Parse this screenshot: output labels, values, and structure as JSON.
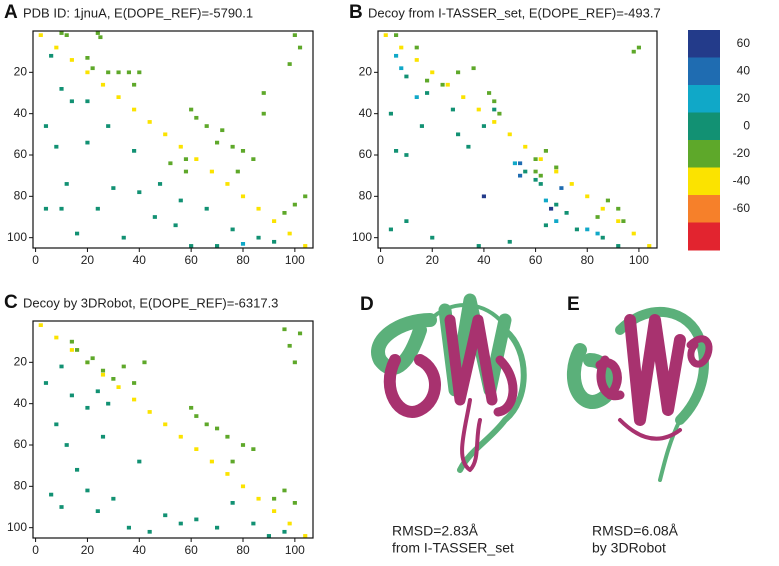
{
  "chart_data": [
    {
      "type": "heatmap",
      "panel_label": "A",
      "title": "PDB ID: 1jnuA, E(DOPE_REF)=-5790.1",
      "xlim": [
        -1,
        107
      ],
      "ylim": [
        0,
        105
      ],
      "xticks": [
        0,
        20,
        40,
        60,
        80,
        100
      ],
      "yticks": [
        20,
        40,
        60,
        80,
        100
      ],
      "x": [
        2,
        8,
        14,
        20,
        26,
        32,
        38,
        44,
        50,
        56,
        62,
        68,
        74,
        80,
        86,
        92,
        98,
        104,
        10,
        12,
        24,
        25,
        20,
        22,
        28,
        32,
        36,
        38,
        40,
        60,
        62,
        66,
        72,
        70,
        76,
        80,
        84,
        78,
        100,
        102,
        98,
        104,
        100,
        96,
        88,
        88,
        58,
        58,
        52,
        6,
        10,
        14,
        20,
        4,
        8,
        20,
        12,
        4,
        10,
        16,
        24,
        30,
        34,
        40,
        46,
        48,
        54,
        60,
        66,
        70,
        76,
        80,
        86,
        92,
        28,
        38,
        56
      ],
      "y": [
        2,
        8,
        14,
        20,
        26,
        32,
        38,
        44,
        50,
        56,
        62,
        68,
        74,
        80,
        86,
        92,
        98,
        104,
        1,
        2,
        1,
        3,
        13,
        18,
        20,
        20,
        20,
        26,
        20,
        38,
        42,
        46,
        48,
        54,
        56,
        58,
        62,
        68,
        2,
        8,
        16,
        80,
        84,
        88,
        30,
        40,
        62,
        68,
        64,
        12,
        28,
        34,
        34,
        46,
        56,
        54,
        74,
        86,
        86,
        98,
        86,
        76,
        100,
        78,
        90,
        74,
        94,
        104,
        86,
        104,
        96,
        103,
        100,
        102,
        46,
        58,
        82
      ],
      "values": [
        -30,
        -30,
        -30,
        -30,
        -30,
        -30,
        -30,
        -30,
        -30,
        -30,
        -30,
        -30,
        -30,
        -30,
        -30,
        -30,
        -30,
        -30,
        -10,
        -10,
        -10,
        -10,
        -10,
        -10,
        -10,
        -10,
        -10,
        -10,
        -10,
        -10,
        -10,
        -10,
        -10,
        -10,
        -10,
        -10,
        -10,
        -10,
        -10,
        -10,
        -10,
        -10,
        -10,
        -10,
        -10,
        -10,
        -10,
        -10,
        -10,
        10,
        10,
        10,
        10,
        10,
        10,
        10,
        10,
        10,
        10,
        10,
        10,
        10,
        10,
        10,
        10,
        10,
        10,
        10,
        10,
        10,
        10,
        25,
        10,
        10,
        10,
        10,
        10
      ]
    },
    {
      "type": "heatmap",
      "panel_label": "B",
      "title": "Decoy from I-TASSER_set, E(DOPE_REF)=-493.7",
      "xlim": [
        -1,
        107
      ],
      "ylim": [
        0,
        105
      ],
      "xticks": [
        0,
        20,
        40,
        60,
        80,
        100
      ],
      "yticks": [
        20,
        40,
        60,
        80,
        100
      ],
      "x": [
        2,
        8,
        14,
        20,
        26,
        32,
        38,
        44,
        50,
        56,
        62,
        68,
        74,
        80,
        86,
        92,
        98,
        104,
        6,
        14,
        18,
        24,
        30,
        42,
        44,
        46,
        36,
        60,
        64,
        68,
        60,
        62,
        84,
        88,
        92,
        98,
        100,
        94,
        6,
        8,
        10,
        14,
        18,
        4,
        6,
        10,
        16,
        28,
        30,
        34,
        40,
        44,
        54,
        56,
        60,
        62,
        64,
        68,
        70,
        72,
        76,
        84,
        4,
        10,
        20,
        38,
        50,
        64,
        80,
        86,
        92,
        52,
        54,
        40,
        66,
        68
      ],
      "y": [
        2,
        8,
        14,
        20,
        26,
        32,
        38,
        44,
        50,
        56,
        62,
        68,
        74,
        80,
        86,
        92,
        98,
        104,
        2,
        8,
        24,
        26,
        20,
        30,
        34,
        40,
        18,
        62,
        58,
        66,
        68,
        70,
        90,
        82,
        86,
        10,
        8,
        92,
        12,
        18,
        22,
        32,
        30,
        40,
        58,
        60,
        46,
        38,
        50,
        56,
        46,
        38,
        64,
        68,
        72,
        74,
        82,
        84,
        76,
        88,
        96,
        98,
        96,
        92,
        100,
        104,
        102,
        94,
        96,
        100,
        104,
        64,
        70,
        80,
        86,
        92
      ],
      "values": [
        -30,
        -30,
        -30,
        -30,
        -30,
        -30,
        -30,
        -30,
        -30,
        -30,
        -30,
        -30,
        -30,
        -30,
        -30,
        -30,
        -30,
        -30,
        -10,
        -10,
        -10,
        -10,
        -10,
        -10,
        -10,
        -10,
        -10,
        -10,
        -10,
        -10,
        -10,
        -10,
        -10,
        -10,
        -10,
        -10,
        -10,
        -10,
        25,
        25,
        10,
        25,
        10,
        10,
        10,
        10,
        10,
        10,
        10,
        10,
        10,
        10,
        45,
        10,
        10,
        10,
        25,
        10,
        45,
        10,
        10,
        25,
        10,
        10,
        10,
        10,
        10,
        10,
        25,
        10,
        10,
        25,
        45,
        65,
        65,
        25
      ]
    },
    {
      "type": "heatmap",
      "panel_label": "C",
      "title": "Decoy by 3DRobot, E(DOPE_REF)=-6317.3",
      "xlim": [
        -1,
        107
      ],
      "ylim": [
        0,
        105
      ],
      "xticks": [
        0,
        20,
        40,
        60,
        80,
        100
      ],
      "yticks": [
        20,
        40,
        60,
        80,
        100
      ],
      "x": [
        2,
        8,
        14,
        20,
        26,
        32,
        38,
        44,
        50,
        56,
        62,
        68,
        74,
        80,
        86,
        92,
        98,
        104,
        14,
        16,
        20,
        22,
        26,
        30,
        34,
        38,
        42,
        60,
        62,
        66,
        70,
        74,
        80,
        84,
        76,
        96,
        98,
        100,
        102,
        92,
        96,
        100,
        4,
        10,
        14,
        20,
        24,
        28,
        8,
        12,
        6,
        10,
        20,
        24,
        30,
        36,
        44,
        50,
        56,
        62,
        70,
        76,
        84,
        90,
        96,
        16,
        26,
        40
      ],
      "y": [
        2,
        8,
        14,
        20,
        26,
        32,
        38,
        44,
        50,
        56,
        62,
        68,
        74,
        80,
        86,
        92,
        98,
        104,
        10,
        14,
        20,
        18,
        24,
        28,
        22,
        30,
        20,
        42,
        46,
        50,
        52,
        56,
        60,
        62,
        68,
        4,
        12,
        20,
        6,
        86,
        82,
        88,
        30,
        22,
        36,
        42,
        34,
        40,
        50,
        60,
        84,
        90,
        82,
        92,
        86,
        100,
        102,
        94,
        98,
        96,
        100,
        88,
        98,
        104,
        102,
        72,
        56,
        68
      ],
      "values": [
        -30,
        -30,
        -30,
        -30,
        -30,
        -30,
        -30,
        -30,
        -30,
        -30,
        -30,
        -30,
        -30,
        -30,
        -30,
        -30,
        -30,
        -30,
        -10,
        -10,
        -10,
        -10,
        -10,
        -10,
        -10,
        -10,
        -10,
        -10,
        -10,
        -10,
        -10,
        -10,
        -10,
        -10,
        -10,
        -10,
        -10,
        -10,
        -10,
        -10,
        -10,
        -10,
        10,
        10,
        10,
        10,
        10,
        10,
        10,
        10,
        10,
        10,
        10,
        10,
        10,
        10,
        10,
        10,
        10,
        10,
        10,
        10,
        10,
        10,
        10,
        10,
        10,
        10
      ]
    },
    {
      "type": "colorbar",
      "ylim": [
        -80,
        80
      ],
      "colors": [
        "#233b8a",
        "#1f6cb1",
        "#10a8c8",
        "#129173",
        "#5ea82a",
        "#fbe300",
        "#f6802a",
        "#e2242f"
      ],
      "ticks": [
        60,
        40,
        20,
        0,
        -20,
        -40,
        -60
      ]
    }
  ],
  "structures": [
    {
      "label": "D",
      "rmsd": "RMSD=2.83Å",
      "source": "from I-TASSER_set"
    },
    {
      "label": "E",
      "rmsd": "RMSD=6.08Å",
      "source": "by 3DRobot"
    }
  ]
}
